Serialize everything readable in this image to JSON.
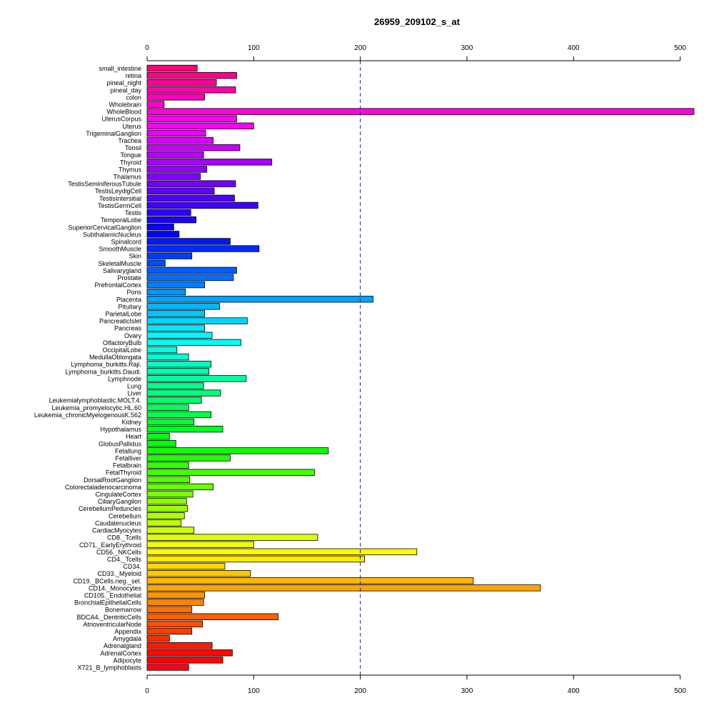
{
  "chart_data": {
    "type": "bar",
    "orientation": "horizontal",
    "title": "26959_209102_s_at",
    "xlabel": "",
    "ylabel": "",
    "xlim": [
      0,
      513
    ],
    "xticks": [
      0,
      100,
      200,
      300,
      400,
      500
    ],
    "reference_line": 200,
    "axes": "top and bottom",
    "grid": false,
    "color_scheme": "rainbow",
    "categories": [
      "small_intestine",
      "retina",
      "pineal_night",
      "pineal_day",
      "colon",
      "Wholebrain",
      "WholeBlood",
      "UterusCorpus",
      "Uterus",
      "TrigeminalGanglion",
      "Trachea",
      "Tonsil",
      "Tongue",
      "Thyroid",
      "Thymus",
      "Thalamus",
      "TestisSeminiferousTubule",
      "TestisLeydigCell",
      "TestisIntersitial",
      "TestisGermCell",
      "Testis",
      "TemporalLobe",
      "SuperiorCervicalGanglion",
      "SubthalamicNucleus",
      "Spinalcord",
      "SmoothMuscle",
      "Skin",
      "SkeletalMuscle",
      "Salivarygland",
      "Prostate",
      "PrefrontalCortex",
      "Pons",
      "Placenta",
      "Pituitary",
      "ParietalLobe",
      "PancreaticIslet",
      "Pancreas",
      "Ovary",
      "OlfactoryBulb",
      "OccipitalLobe",
      "MedullaOblongata",
      "Lymphoma_burkitts.Raji.",
      "Lymphoma_burkitts.Daudi.",
      "Lymphnode",
      "Lung",
      "Liver",
      "Leukemialymphoblastic.MOLT.4.",
      "Leukemia_promyelocytic.HL.60",
      "Leukemia_chronicMyelogenousK.562",
      "Kidney",
      "Hypothalamus",
      "Heart",
      "GlobusPallidus",
      "Fetallung",
      "Fetalliver",
      "Fetalbrain",
      "FetalThyroid",
      "DorsalRootGanglion",
      "Colorectaladenocarcinoma",
      "CingulateCortex",
      "CiliaryGanglion",
      "CerebellumPeduncles",
      "Cerebellum",
      "Caudatenucleus",
      "CardiacMyocytes",
      "CD8._Tcells",
      "CD71._EarlyErythroid",
      "CD56._NKCells",
      "CD4._Tcells",
      "CD34.",
      "CD33._Myeloid",
      "CD19._BCells.neg._sel.",
      "CD14._Monocytes",
      "CD105._Endothelial",
      "BronchialEpithelialCells",
      "Bonemarrow",
      "BDCA4._DentriticCells",
      "AtrioventricularNode",
      "Appendix",
      "Amygdala",
      "Adrenalgland",
      "AdrenalCortex",
      "Adipocyte",
      "X721_B_lymphoblasts"
    ],
    "values": [
      47,
      84,
      65,
      83,
      54,
      16,
      513,
      84,
      100,
      55,
      62,
      87,
      53,
      117,
      56,
      50,
      83,
      63,
      82,
      104,
      41,
      46,
      25,
      30,
      78,
      105,
      42,
      17,
      84,
      81,
      54,
      36,
      212,
      68,
      54,
      94,
      54,
      61,
      88,
      28,
      39,
      60,
      58,
      93,
      53,
      69,
      51,
      39,
      60,
      44,
      71,
      21,
      27,
      170,
      78,
      39,
      157,
      40,
      62,
      43,
      37,
      38,
      35,
      32,
      44,
      160,
      100,
      253,
      204,
      73,
      97,
      306,
      369,
      54,
      53,
      42,
      123,
      52,
      42,
      21,
      61,
      80,
      71,
      39
    ]
  }
}
